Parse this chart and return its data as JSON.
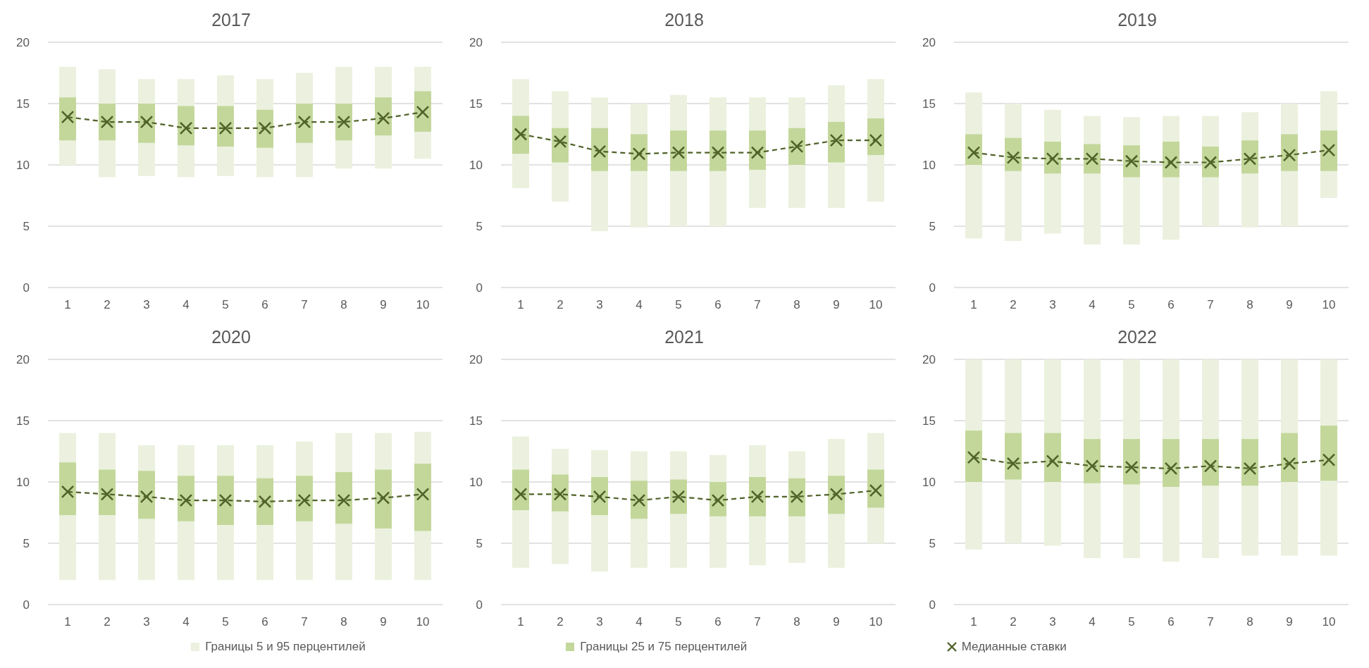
{
  "chart_data": [
    {
      "type": "bar",
      "title": "2017",
      "categories": [
        "1",
        "2",
        "3",
        "4",
        "5",
        "6",
        "7",
        "8",
        "9",
        "10"
      ],
      "ylim": [
        0,
        20
      ],
      "yticks": [
        0,
        5,
        10,
        15,
        20
      ],
      "grid": "y",
      "series": [
        {
          "color": "#ebf1de",
          "base": [
            10,
            9,
            9.1,
            9,
            9.1,
            9,
            9,
            9.7,
            9.7,
            10.5
          ],
          "values": [
            8,
            8.8,
            7.9,
            8,
            8.2,
            8,
            8.5,
            8.3,
            8.3,
            7.5
          ]
        },
        {
          "color": "#c4d79b",
          "base": [
            12,
            12,
            11.8,
            11.6,
            11.5,
            11.4,
            11.8,
            12,
            12.4,
            12.7
          ],
          "values": [
            3.5,
            3,
            3.2,
            3.2,
            3.3,
            3.1,
            3.2,
            3,
            3.1,
            3.3
          ]
        },
        {
          "type": "line",
          "color": "#4f6228",
          "marker": "cross",
          "line_style": "dashed",
          "values": [
            13.9,
            13.5,
            13.5,
            13,
            13,
            13,
            13.5,
            13.5,
            13.8,
            14.3
          ]
        }
      ]
    },
    {
      "type": "bar",
      "title": "2018",
      "categories": [
        "1",
        "2",
        "3",
        "4",
        "5",
        "6",
        "7",
        "8",
        "9",
        "10"
      ],
      "ylim": [
        0,
        20
      ],
      "yticks": [
        0,
        5,
        10,
        15,
        20
      ],
      "grid": "y",
      "series": [
        {
          "color": "#ebf1de",
          "base": [
            8.1,
            7,
            4.6,
            4.9,
            5,
            5,
            6.5,
            6.5,
            6.5,
            7
          ],
          "values": [
            8.9,
            9,
            10.9,
            10.1,
            10.7,
            10.5,
            9,
            9,
            10,
            10
          ]
        },
        {
          "color": "#c4d79b",
          "base": [
            10.9,
            10.2,
            9.5,
            9.5,
            9.5,
            9.5,
            9.6,
            10,
            10.2,
            10.8
          ],
          "values": [
            3.1,
            2.8,
            3.5,
            3,
            3.3,
            3.3,
            3.2,
            3,
            3.3,
            3
          ]
        },
        {
          "type": "line",
          "color": "#4f6228",
          "marker": "cross",
          "line_style": "dashed",
          "values": [
            12.5,
            11.9,
            11.1,
            10.9,
            11,
            11,
            11,
            11.5,
            12,
            12
          ]
        }
      ]
    },
    {
      "type": "bar",
      "title": "2019",
      "categories": [
        "1",
        "2",
        "3",
        "4",
        "5",
        "6",
        "7",
        "8",
        "9",
        "10"
      ],
      "ylim": [
        0,
        20
      ],
      "yticks": [
        0,
        5,
        10,
        15,
        20
      ],
      "grid": "y",
      "series": [
        {
          "color": "#ebf1de",
          "base": [
            4,
            3.8,
            4.4,
            3.5,
            3.5,
            3.9,
            5,
            4.9,
            5,
            7.3
          ],
          "values": [
            11.9,
            11.2,
            10.1,
            10.5,
            10.4,
            10.1,
            9,
            9.4,
            10,
            8.7
          ]
        },
        {
          "color": "#c4d79b",
          "base": [
            10,
            9.5,
            9.3,
            9.3,
            9,
            9,
            9,
            9.3,
            9.5,
            9.5
          ],
          "values": [
            2.5,
            2.7,
            2.6,
            2.4,
            2.6,
            2.9,
            2.5,
            2.7,
            3,
            3.3
          ]
        },
        {
          "type": "line",
          "color": "#4f6228",
          "marker": "cross",
          "line_style": "dashed",
          "values": [
            11,
            10.6,
            10.5,
            10.5,
            10.3,
            10.2,
            10.2,
            10.5,
            10.8,
            11.2
          ]
        }
      ]
    },
    {
      "type": "bar",
      "title": "2020",
      "categories": [
        "1",
        "2",
        "3",
        "4",
        "5",
        "6",
        "7",
        "8",
        "9",
        "10"
      ],
      "ylim": [
        0,
        20
      ],
      "yticks": [
        0,
        5,
        10,
        15,
        20
      ],
      "grid": "y",
      "series": [
        {
          "color": "#ebf1de",
          "base": [
            2,
            2,
            2,
            2,
            2,
            2,
            2,
            2,
            2,
            2
          ],
          "values": [
            12,
            12,
            11,
            11,
            11,
            11,
            11.3,
            12,
            12,
            12.1
          ]
        },
        {
          "color": "#c4d79b",
          "base": [
            7.3,
            7.3,
            7,
            6.8,
            6.5,
            6.5,
            6.8,
            6.6,
            6.2,
            6
          ],
          "values": [
            4.3,
            3.7,
            3.9,
            3.7,
            4,
            3.8,
            3.7,
            4.2,
            4.8,
            5.5
          ]
        },
        {
          "type": "line",
          "color": "#4f6228",
          "marker": "cross",
          "line_style": "dashed",
          "values": [
            9.2,
            9,
            8.8,
            8.5,
            8.5,
            8.4,
            8.5,
            8.5,
            8.7,
            9
          ]
        }
      ]
    },
    {
      "type": "bar",
      "title": "2021",
      "categories": [
        "1",
        "2",
        "3",
        "4",
        "5",
        "6",
        "7",
        "8",
        "9",
        "10"
      ],
      "ylim": [
        0,
        20
      ],
      "yticks": [
        0,
        5,
        10,
        15,
        20
      ],
      "grid": "y",
      "legend": "bottom",
      "series": [
        {
          "name": "Границы 5 и 95 перцентилей",
          "color": "#ebf1de",
          "base": [
            3,
            3.3,
            2.7,
            3,
            3,
            3,
            3.2,
            3.4,
            3,
            5
          ],
          "values": [
            10.7,
            9.4,
            9.9,
            9.5,
            9.5,
            9.2,
            9.8,
            9.1,
            10.5,
            9
          ]
        },
        {
          "name": "Границы 25 и 75 перцентилей",
          "color": "#c4d79b",
          "base": [
            7.7,
            7.6,
            7.3,
            7,
            7.4,
            7.2,
            7.2,
            7.2,
            7.4,
            7.9
          ],
          "values": [
            3.3,
            3,
            3.1,
            3.1,
            2.8,
            2.8,
            3.2,
            3.1,
            3.1,
            3.1
          ]
        },
        {
          "type": "line",
          "name": "Медианные ставки",
          "color": "#4f6228",
          "marker": "cross",
          "line_style": "dashed",
          "values": [
            9,
            9,
            8.8,
            8.5,
            8.8,
            8.5,
            8.8,
            8.8,
            9,
            9.3
          ]
        }
      ]
    },
    {
      "type": "bar",
      "title": "2022",
      "categories": [
        "1",
        "2",
        "3",
        "4",
        "5",
        "6",
        "7",
        "8",
        "9",
        "10"
      ],
      "ylim": [
        0,
        20
      ],
      "yticks": [
        0,
        5,
        10,
        15,
        20
      ],
      "grid": "y",
      "series": [
        {
          "color": "#ebf1de",
          "base": [
            4.5,
            5,
            4.8,
            3.8,
            3.8,
            3.5,
            3.8,
            4,
            4,
            4
          ],
          "values": [
            15.5,
            15,
            15.2,
            16.2,
            16.2,
            16.5,
            16.2,
            16,
            16,
            16
          ]
        },
        {
          "color": "#c4d79b",
          "base": [
            10,
            10.2,
            10,
            9.9,
            9.8,
            9.6,
            9.7,
            9.7,
            10,
            10.1
          ],
          "values": [
            4.2,
            3.8,
            4,
            3.6,
            3.7,
            3.9,
            3.8,
            3.8,
            4,
            4.5
          ]
        },
        {
          "type": "line",
          "color": "#4f6228",
          "marker": "cross",
          "line_style": "dashed",
          "values": [
            12,
            11.5,
            11.7,
            11.3,
            11.2,
            11.1,
            11.3,
            11.1,
            11.5,
            11.8
          ]
        }
      ]
    }
  ]
}
